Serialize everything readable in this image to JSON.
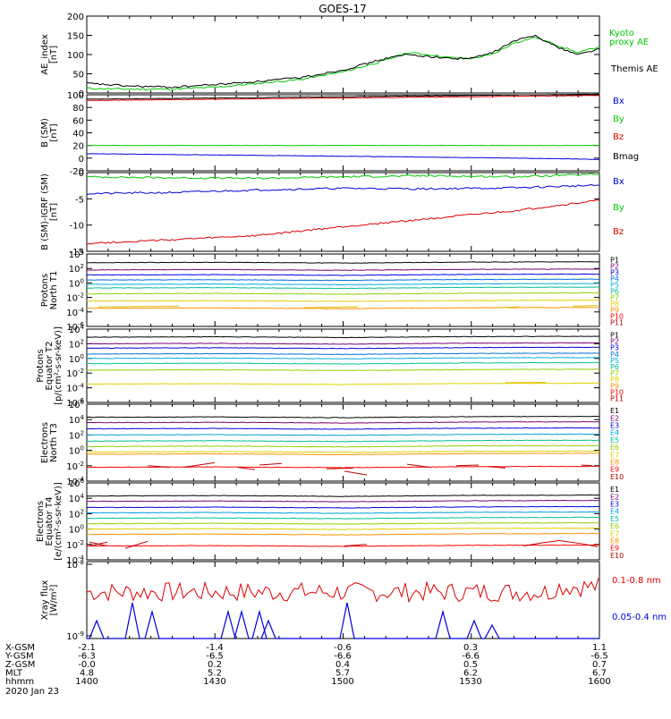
{
  "title": "GOES-17",
  "chart_data": [
    {
      "type": "line",
      "panel": "AE_index",
      "ylabel": "AE_index [nT]",
      "ylim": [
        0,
        200
      ],
      "yticks": [
        "0",
        "50",
        "100",
        "150",
        "200"
      ],
      "series": [
        {
          "name": "Kyoto proxy AE",
          "color": "#00cc00",
          "x": [
            1400,
            1410,
            1420,
            1430,
            1440,
            1450,
            1500,
            1505,
            1510,
            1515,
            1520,
            1525,
            1530,
            1535,
            1540,
            1545,
            1550,
            1555,
            1600
          ],
          "y": [
            12,
            10,
            10,
            15,
            25,
            35,
            55,
            70,
            85,
            105,
            100,
            92,
            90,
            100,
            130,
            145,
            125,
            105,
            120
          ]
        },
        {
          "name": "Themis AE",
          "color": "#000000",
          "x": [
            1400,
            1410,
            1420,
            1430,
            1440,
            1450,
            1500,
            1505,
            1510,
            1515,
            1520,
            1525,
            1530,
            1535,
            1540,
            1545,
            1550,
            1555,
            1600
          ],
          "y": [
            25,
            18,
            15,
            22,
            30,
            40,
            60,
            75,
            90,
            100,
            95,
            90,
            90,
            105,
            135,
            150,
            120,
            100,
            115
          ]
        }
      ]
    },
    {
      "type": "line",
      "panel": "B (SM)",
      "ylabel": "B (SM) [nT]",
      "ylim": [
        -20,
        100
      ],
      "yticks": [
        "-20",
        "0",
        "20",
        "40",
        "60",
        "80",
        "100"
      ],
      "series": [
        {
          "name": "Bx",
          "color": "#0000dd",
          "x": [
            1400,
            1430,
            1500,
            1530,
            1600
          ],
          "y": [
            7,
            5,
            3,
            1,
            -2
          ]
        },
        {
          "name": "By",
          "color": "#00cc00",
          "x": [
            1400,
            1430,
            1500,
            1530,
            1600
          ],
          "y": [
            20,
            20,
            20,
            20,
            20
          ]
        },
        {
          "name": "Bz",
          "color": "#dd0000",
          "x": [
            1400,
            1430,
            1500,
            1530,
            1600
          ],
          "y": [
            91,
            93,
            95,
            97,
            99
          ]
        },
        {
          "name": "Bmag",
          "color": "#000000",
          "x": [
            1400,
            1430,
            1500,
            1530,
            1600
          ],
          "y": [
            93,
            95,
            97,
            99,
            101
          ]
        }
      ]
    },
    {
      "type": "line",
      "panel": "B (SM)-IGRF (SM)",
      "ylabel": "B (SM)-IGRF (SM) [nT]",
      "ylim": [
        -15,
        0
      ],
      "yticks": [
        "-15",
        "-10",
        "-5",
        "0"
      ],
      "series": [
        {
          "name": "Bx",
          "color": "#0000dd",
          "x": [
            1400,
            1420,
            1440,
            1500,
            1520,
            1540,
            1600
          ],
          "y": [
            -4.0,
            -3.8,
            -3.3,
            -3.0,
            -3.1,
            -2.9,
            -2.4
          ]
        },
        {
          "name": "By",
          "color": "#00cc00",
          "x": [
            1400,
            1420,
            1440,
            1500,
            1520,
            1540,
            1600
          ],
          "y": [
            -0.8,
            -1.0,
            -1.1,
            -0.8,
            -0.6,
            -0.8,
            -0.3
          ]
        },
        {
          "name": "Bz",
          "color": "#dd0000",
          "x": [
            1400,
            1420,
            1440,
            1500,
            1520,
            1540,
            1600
          ],
          "y": [
            -13.5,
            -12.8,
            -12.0,
            -10.3,
            -8.8,
            -7.3,
            -5.3
          ]
        }
      ]
    },
    {
      "type": "line",
      "panel": "Protons North T1",
      "ylabel": "Protons North T1",
      "yscale": "log",
      "ylim": [
        "10^-6",
        "10^4"
      ],
      "yticks": [
        "10^4",
        "10^2",
        "10^0",
        "10^-2",
        "10^-4",
        "10^-6"
      ],
      "channels": [
        "P1",
        "P2",
        "P3",
        "P4",
        "P5",
        "P6",
        "P7",
        "P8",
        "P9",
        "P10",
        "P11"
      ],
      "channel_colors": [
        "#000000",
        "#7a007a",
        "#0000dd",
        "#0070dd",
        "#00b0dd",
        "#00c090",
        "#90d000",
        "#e0d000",
        "#ff9000",
        "#ff0000",
        "#b00000"
      ],
      "log_values": [
        2.8,
        1.8,
        1.1,
        0.4,
        -0.2,
        -0.7,
        -1.5,
        -2.5,
        -3.5
      ]
    },
    {
      "type": "line",
      "panel": "Protons Equator T2",
      "ylabel": "Protons Equator T2 [p/(cm²-s-sr-keV)]",
      "yscale": "log",
      "ylim": [
        "10^-6",
        "10^4"
      ],
      "yticks": [
        "10^4",
        "10^2",
        "10^0",
        "10^-2",
        "10^-4",
        "10^-6"
      ],
      "channels": [
        "P1",
        "P2",
        "P3",
        "P4",
        "P5",
        "P6",
        "P7",
        "P8",
        "P9",
        "P10",
        "P11"
      ],
      "channel_colors": [
        "#000000",
        "#7a007a",
        "#0000dd",
        "#0070dd",
        "#00b0dd",
        "#00c090",
        "#90d000",
        "#e0d000",
        "#ff9000",
        "#ff0000",
        "#b00000"
      ],
      "log_values": [
        2.9,
        2.0,
        1.4,
        0.6,
        0.0,
        -0.7,
        -1.6,
        -3.5
      ]
    },
    {
      "type": "line",
      "panel": "Electrons North T3",
      "ylabel": "Electrons North T3",
      "yscale": "log",
      "ylim": [
        "10^-4",
        "10^6"
      ],
      "yticks": [
        "10^6",
        "10^4",
        "10^2",
        "10^0",
        "10^-2",
        "10^-4"
      ],
      "channels": [
        "E1",
        "E2",
        "E3",
        "E4",
        "E5",
        "E6",
        "E7",
        "E8",
        "E9",
        "E10"
      ],
      "channel_colors": [
        "#000000",
        "#7a007a",
        "#0000dd",
        "#00a0dd",
        "#00c090",
        "#90d000",
        "#e0d000",
        "#ff9000",
        "#ff0000",
        "#b00000"
      ],
      "log_values": [
        4.3,
        3.6,
        2.8,
        2.0,
        1.2,
        0.5,
        -0.2,
        -0.5,
        -2.2
      ]
    },
    {
      "type": "line",
      "panel": "Electrons Equator T4",
      "ylabel": "Electrons Equator T4 [e/(cm²-s-sr-keV)]",
      "yscale": "log",
      "ylim": [
        "10^-4",
        "10^6"
      ],
      "yticks": [
        "10^6",
        "10^4",
        "10^2",
        "10^0",
        "10^-2",
        "10^-4"
      ],
      "channels": [
        "E1",
        "E2",
        "E3",
        "E4",
        "E5",
        "E6",
        "E7",
        "E8",
        "E9",
        "E10"
      ],
      "channel_colors": [
        "#000000",
        "#7a007a",
        "#0000dd",
        "#00a0dd",
        "#00c090",
        "#90d000",
        "#e0d000",
        "#ff9000",
        "#ff0000",
        "#b00000"
      ],
      "log_values": [
        4.3,
        3.6,
        2.8,
        2.1,
        1.4,
        0.7,
        0.0,
        -0.7,
        -2.2
      ]
    },
    {
      "type": "line",
      "panel": "Xray flux",
      "ylabel": "Xray flux [W/m²]",
      "yscale": "log",
      "ylim": [
        "10^-9",
        "10^-8"
      ],
      "yticks": [
        "10^-8",
        "10^-9"
      ],
      "series": [
        {
          "name": "0.1-0.8 nm",
          "color": "#dd0000"
        },
        {
          "name": "0.05-0.4 nm",
          "color": "#0000dd"
        }
      ]
    }
  ],
  "xaxis": {
    "rows": [
      {
        "label": "X-GSM",
        "values": [
          "-2.1",
          "-1.4",
          "-0.6",
          "0.3",
          "1.1"
        ]
      },
      {
        "label": "Y-GSM",
        "values": [
          "-6.3",
          "-6.5",
          "-6.6",
          "-6.6",
          "-6.5"
        ]
      },
      {
        "label": "Z-GSM",
        "values": [
          "-0.0",
          "0.2",
          "0.4",
          "0.5",
          "0.7"
        ]
      },
      {
        "label": "MLT",
        "values": [
          "4.8",
          "5.2",
          "5.7",
          "6.2",
          "6.7"
        ]
      },
      {
        "label": "hhmm",
        "values": [
          "1400",
          "1430",
          "1500",
          "1530",
          "1600"
        ]
      }
    ],
    "date": "2020 Jan 23"
  }
}
